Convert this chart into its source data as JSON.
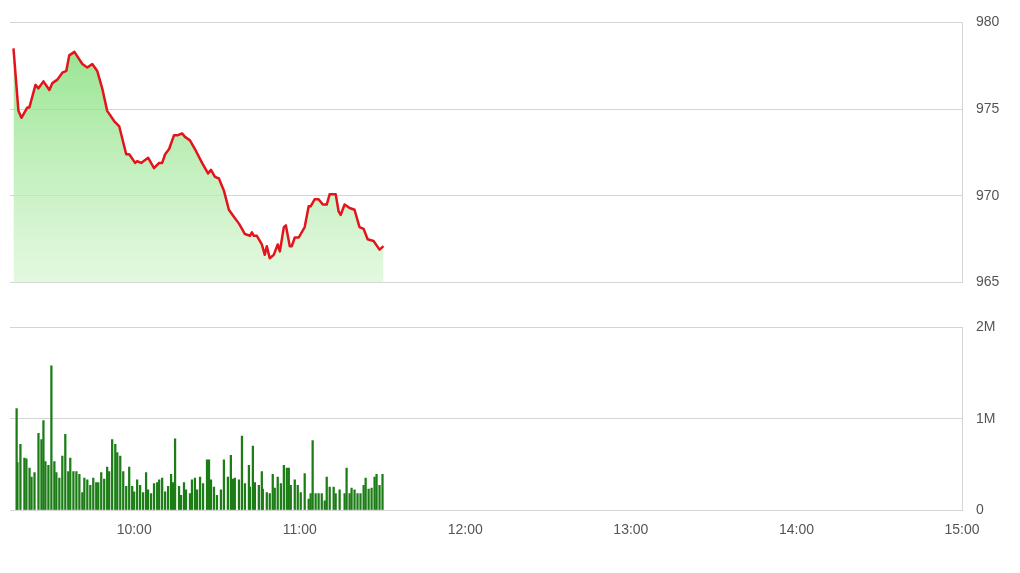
{
  "chart_data": [
    {
      "type": "area",
      "x": [
        9.271,
        9.301,
        9.319,
        9.355,
        9.367,
        9.404,
        9.422,
        9.452,
        9.488,
        9.506,
        9.536,
        9.566,
        9.59,
        9.608,
        9.639,
        9.687,
        9.717,
        9.747,
        9.777,
        9.807,
        9.837,
        9.88,
        9.91,
        9.952,
        9.97,
        10.006,
        10.018,
        10.042,
        10.084,
        10.12,
        10.151,
        10.169,
        10.187,
        10.211,
        10.241,
        10.265,
        10.289,
        10.307,
        10.337,
        10.367,
        10.41,
        10.446,
        10.464,
        10.488,
        10.512,
        10.542,
        10.572,
        10.602,
        10.633,
        10.669,
        10.699,
        10.711,
        10.723,
        10.741,
        10.771,
        10.789,
        10.801,
        10.819,
        10.843,
        10.867,
        10.88,
        10.904,
        10.916,
        10.94,
        10.952,
        10.97,
        10.994,
        11.03,
        11.054,
        11.066,
        11.09,
        11.114,
        11.139,
        11.163,
        11.181,
        11.217,
        11.235,
        11.247,
        11.271,
        11.301,
        11.331,
        11.361,
        11.386,
        11.41,
        11.446,
        11.482,
        11.506
      ],
      "series": [
        {
          "color": "#e3141b",
          "values": [
            978.5,
            974.9,
            974.5,
            975.1,
            975.1,
            976.4,
            976.2,
            976.6,
            976.1,
            976.5,
            976.7,
            977.1,
            977.2,
            978.1,
            978.3,
            977.6,
            977.4,
            977.6,
            977.2,
            976.2,
            974.9,
            974.3,
            974.0,
            972.4,
            972.4,
            971.9,
            972.0,
            971.9,
            972.2,
            971.6,
            971.9,
            971.9,
            972.4,
            972.7,
            973.5,
            973.5,
            973.6,
            973.4,
            973.2,
            972.7,
            971.9,
            971.3,
            971.5,
            971.1,
            971.0,
            970.3,
            969.2,
            968.8,
            968.4,
            967.8,
            967.7,
            967.9,
            967.7,
            967.7,
            967.2,
            966.6,
            967.1,
            966.4,
            966.6,
            967.2,
            966.8,
            968.2,
            968.3,
            967.1,
            967.1,
            967.6,
            967.6,
            968.2,
            969.4,
            969.4,
            969.8,
            969.8,
            969.5,
            969.5,
            970.1,
            970.1,
            969.1,
            968.9,
            969.5,
            969.3,
            969.2,
            968.2,
            968.1,
            967.5,
            967.4,
            966.9,
            967.1
          ]
        }
      ],
      "xlim": [
        9.25,
        15
      ],
      "ylim": [
        965,
        980
      ],
      "yticks": [
        965,
        970,
        975,
        980
      ],
      "tick_labels": "y",
      "grid": "y"
    },
    {
      "type": "bar",
      "x": [
        9.29,
        9.295,
        9.313,
        9.337,
        9.349,
        9.368,
        9.38,
        9.398,
        9.422,
        9.44,
        9.452,
        9.464,
        9.482,
        9.5,
        9.518,
        9.53,
        9.548,
        9.566,
        9.584,
        9.602,
        9.614,
        9.633,
        9.651,
        9.669,
        9.687,
        9.699,
        9.717,
        9.735,
        9.753,
        9.771,
        9.783,
        9.801,
        9.819,
        9.837,
        9.849,
        9.867,
        9.886,
        9.898,
        9.916,
        9.934,
        9.952,
        9.97,
        9.988,
        10.0,
        10.018,
        10.036,
        10.054,
        10.072,
        10.084,
        10.102,
        10.12,
        10.139,
        10.151,
        10.169,
        10.187,
        10.205,
        10.223,
        10.235,
        10.247,
        10.271,
        10.283,
        10.301,
        10.313,
        10.337,
        10.349,
        10.367,
        10.38,
        10.398,
        10.416,
        10.44,
        10.452,
        10.464,
        10.482,
        10.5,
        10.524,
        10.542,
        10.566,
        10.584,
        10.596,
        10.608,
        10.633,
        10.651,
        10.669,
        10.693,
        10.699,
        10.717,
        10.729,
        10.753,
        10.771,
        10.777,
        10.801,
        10.819,
        10.837,
        10.849,
        10.867,
        10.886,
        10.904,
        10.922,
        10.934,
        10.946,
        10.97,
        10.988,
        11.006,
        11.03,
        11.054,
        11.066,
        11.078,
        11.096,
        11.114,
        11.133,
        11.151,
        11.163,
        11.181,
        11.205,
        11.217,
        11.241,
        11.271,
        11.283,
        11.301,
        11.313,
        11.331,
        11.349,
        11.367,
        11.386,
        11.398,
        11.416,
        11.434,
        11.452,
        11.464,
        11.482,
        11.5
      ],
      "series": [
        {
          "color": "#1c7d16",
          "values": [
            1.11,
            0.52,
            0.72,
            0.57,
            0.56,
            0.46,
            0.36,
            0.41,
            0.84,
            0.77,
            0.98,
            0.53,
            0.49,
            1.58,
            0.53,
            0.41,
            0.35,
            0.59,
            0.83,
            0.42,
            0.57,
            0.42,
            0.42,
            0.39,
            0.19,
            0.35,
            0.33,
            0.27,
            0.35,
            0.3,
            0.3,
            0.41,
            0.34,
            0.47,
            0.42,
            0.77,
            0.72,
            0.63,
            0.59,
            0.42,
            0.26,
            0.47,
            0.26,
            0.2,
            0.33,
            0.27,
            0.19,
            0.41,
            0.22,
            0.18,
            0.29,
            0.3,
            0.33,
            0.35,
            0.2,
            0.26,
            0.39,
            0.3,
            0.78,
            0.26,
            0.16,
            0.3,
            0.22,
            0.18,
            0.33,
            0.35,
            0.22,
            0.36,
            0.29,
            0.55,
            0.55,
            0.33,
            0.25,
            0.16,
            0.22,
            0.55,
            0.36,
            0.6,
            0.34,
            0.35,
            0.33,
            0.81,
            0.29,
            0.49,
            0.25,
            0.7,
            0.3,
            0.27,
            0.42,
            0.23,
            0.19,
            0.18,
            0.39,
            0.24,
            0.36,
            0.29,
            0.49,
            0.46,
            0.46,
            0.27,
            0.33,
            0.27,
            0.19,
            0.4,
            0.12,
            0.18,
            0.76,
            0.18,
            0.18,
            0.18,
            0.1,
            0.36,
            0.25,
            0.25,
            0.18,
            0.22,
            0.18,
            0.46,
            0.18,
            0.24,
            0.22,
            0.18,
            0.18,
            0.27,
            0.35,
            0.23,
            0.24,
            0.36,
            0.39,
            0.27,
            0.39
          ]
        }
      ],
      "xlim": [
        9.25,
        15
      ],
      "xticks": [
        {
          "value": 10,
          "label": "10:00"
        },
        {
          "value": 11,
          "label": "11:00"
        },
        {
          "value": 12,
          "label": "12:00"
        },
        {
          "value": 13,
          "label": "13:00"
        },
        {
          "value": 14,
          "label": "14:00"
        },
        {
          "value": 15,
          "label": "15:00"
        }
      ],
      "ylim": [
        0,
        2
      ],
      "yticks": [
        0,
        {
          "value": 1,
          "label": "1M"
        },
        {
          "value": 2,
          "label": "2M"
        }
      ],
      "grid": "y"
    }
  ]
}
